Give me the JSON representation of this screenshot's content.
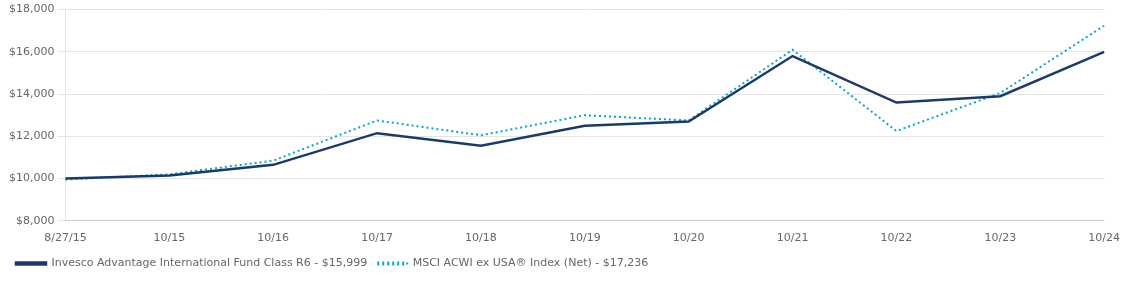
{
  "chart_data": {
    "type": "line",
    "categories": [
      "8/27/15",
      "10/15",
      "10/16",
      "10/17",
      "10/18",
      "10/19",
      "10/20",
      "10/21",
      "10/22",
      "10/23",
      "10/24"
    ],
    "series": [
      {
        "name": "Invesco Advantage International Fund Class R6 - $15,999",
        "color": "#1a3a6b",
        "line_style": "solid",
        "values": [
          10000,
          10150,
          10650,
          12150,
          11550,
          12500,
          12700,
          15800,
          13600,
          13900,
          15999
        ]
      },
      {
        "name": "MSCI ACWI ex USA® Index (Net) - $17,236",
        "color": "#00aacc",
        "line_style": "dotted",
        "values": [
          9950,
          10200,
          10850,
          12750,
          12050,
          13000,
          12750,
          16100,
          12250,
          14050,
          17236
        ]
      }
    ],
    "ylim": [
      8000,
      18000
    ],
    "yticks": [
      {
        "value": 8000,
        "label": "$8,000"
      },
      {
        "value": 10000,
        "label": "$10,000"
      },
      {
        "value": 12000,
        "label": "$12,000"
      },
      {
        "value": 14000,
        "label": "$14,000"
      },
      {
        "value": 16000,
        "label": "$16,000"
      },
      {
        "value": 18000,
        "label": "$18,000"
      }
    ],
    "grid": true,
    "legend": "bottom"
  }
}
